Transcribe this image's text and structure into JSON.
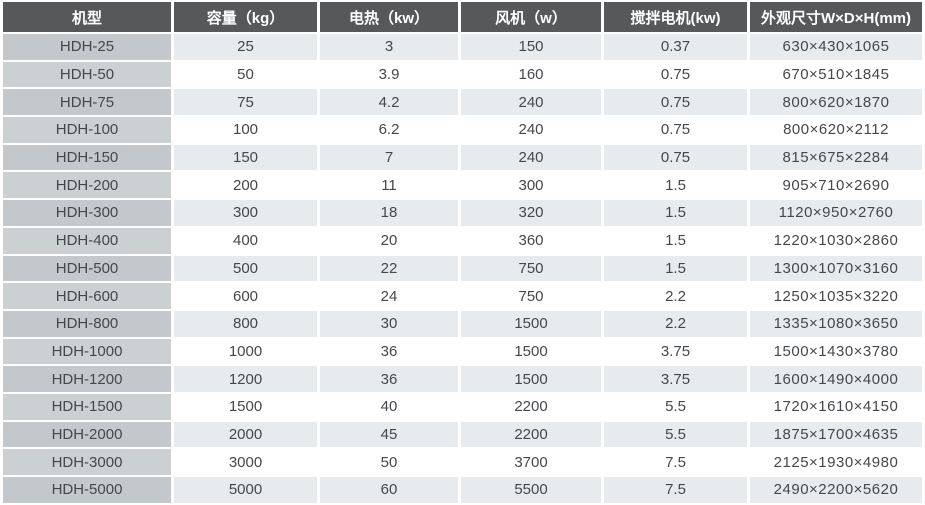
{
  "table": {
    "columns": [
      {
        "key": "model",
        "label": "机型"
      },
      {
        "key": "capacity",
        "label": "容量（kg）"
      },
      {
        "key": "heating",
        "label": "电热（kw）"
      },
      {
        "key": "fan",
        "label": "风机（w）"
      },
      {
        "key": "motor",
        "label": "搅拌电机(kw)"
      },
      {
        "key": "dimensions",
        "label": "外观尺寸W×D×H(mm)"
      }
    ],
    "rows": [
      [
        "HDH-25",
        "25",
        "3",
        "150",
        "0.37",
        "630×430×1065"
      ],
      [
        "HDH-50",
        "50",
        "3.9",
        "160",
        "0.75",
        "670×510×1845"
      ],
      [
        "HDH-75",
        "75",
        "4.2",
        "240",
        "0.75",
        "800×620×1870"
      ],
      [
        "HDH-100",
        "100",
        "6.2",
        "240",
        "0.75",
        "800×620×2112"
      ],
      [
        "HDH-150",
        "150",
        "7",
        "240",
        "0.75",
        "815×675×2284"
      ],
      [
        "HDH-200",
        "200",
        "11",
        "300",
        "1.5",
        "905×710×2690"
      ],
      [
        "HDH-300",
        "300",
        "18",
        "320",
        "1.5",
        "1120×950×2760"
      ],
      [
        "HDH-400",
        "400",
        "20",
        "360",
        "1.5",
        "1220×1030×2860"
      ],
      [
        "HDH-500",
        "500",
        "22",
        "750",
        "1.5",
        "1300×1070×3160"
      ],
      [
        "HDH-600",
        "600",
        "24",
        "750",
        "2.2",
        "1250×1035×3220"
      ],
      [
        "HDH-800",
        "800",
        "30",
        "1500",
        "2.2",
        "1335×1080×3650"
      ],
      [
        "HDH-1000",
        "1000",
        "36",
        "1500",
        "3.75",
        "1500×1430×3780"
      ],
      [
        "HDH-1200",
        "1200",
        "36",
        "1500",
        "3.75",
        "1600×1490×4000"
      ],
      [
        "HDH-1500",
        "1500",
        "40",
        "2200",
        "5.5",
        "1720×1610×4150"
      ],
      [
        "HDH-2000",
        "2000",
        "45",
        "2200",
        "5.5",
        "1875×1700×4635"
      ],
      [
        "HDH-3000",
        "3000",
        "50",
        "3700",
        "7.5",
        "2125×1930×4980"
      ],
      [
        "HDH-5000",
        "5000",
        "60",
        "5500",
        "7.5",
        "2490×2200×5620"
      ]
    ]
  },
  "colors": {
    "header_bg": "#57585a",
    "header_text": "#ffffff",
    "model_col_odd": "#c3c8cc",
    "model_col_even": "#cbd0d3",
    "row_odd": "#e8ebed",
    "row_even": "#ffffff",
    "cell_text": "#45474a"
  }
}
